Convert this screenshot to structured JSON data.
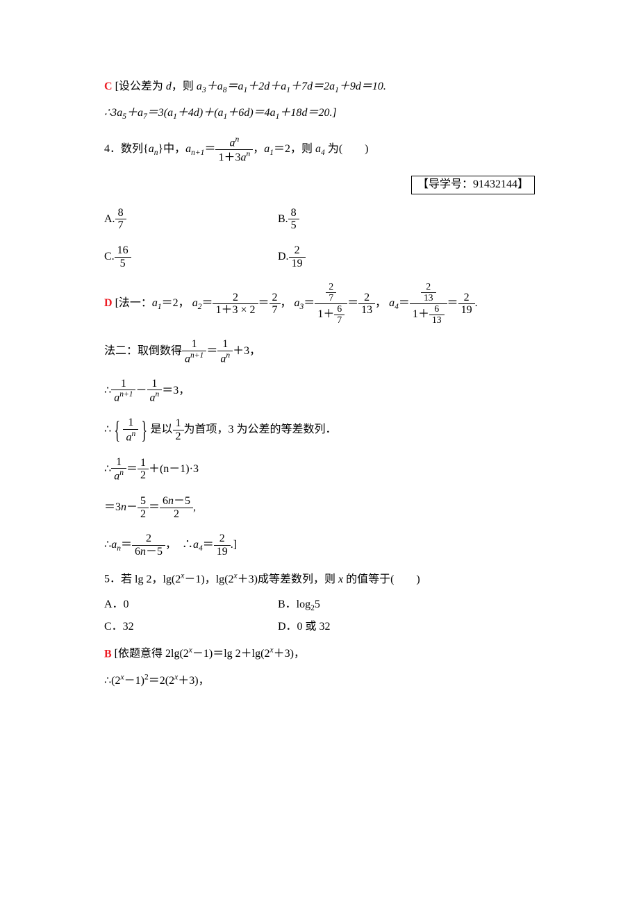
{
  "colors": {
    "answer": "#ed1c24",
    "text": "#000000",
    "background": "#ffffff"
  },
  "typography": {
    "base_font": "SimSun / Times New Roman",
    "base_size_pt": 12
  },
  "q3_answer": {
    "letter": "C",
    "line1_prefix": "[设公差为 ",
    "line1_mid": "，则 ",
    "line1_expr": "a₃＋a₈＝a₁＋2d＋a₁＋7d＝2a₁＋9d＝10.",
    "line2": "∴3a₅＋a₇＝3(a₁＋4d)＋(a₁＋6d)＝4a₁＋18d＝20.]"
  },
  "q4": {
    "num": "4．",
    "prefix": "数列{",
    "mid1": "}中，",
    "frac_num": "aⁿ",
    "frac_den": "1＋3aⁿ",
    "mid2": "，",
    "mid3": "＝2，则 ",
    "suffix": " 为(　　)",
    "ref": "【导学号：91432144】",
    "optA_num": "8",
    "optA_den": "7",
    "optB_num": "8",
    "optB_den": "5",
    "optC_num": "16",
    "optC_den": "5",
    "optD_num": "2",
    "optD_den": "19",
    "answer_letter": "D",
    "m1_prefix": "[法一：",
    "m1_a1": "＝2，",
    "m1_a2_n1": "2",
    "m1_a2_d1": "1＋3 × 2",
    "m1_a2_n2": "2",
    "m1_a2_d2": "7",
    "m1_a3_n1n": "2",
    "m1_a3_n1d": "7",
    "m1_a3_d1": "1＋",
    "m1_a3_d1fn": "6",
    "m1_a3_d1fd": "7",
    "m1_a3_n2": "2",
    "m1_a3_d2": "13",
    "m1_a4_n1n": "2",
    "m1_a4_n1d": "13",
    "m1_a4_d1": "1＋",
    "m1_a4_d1fn": "6",
    "m1_a4_d1fd": "13",
    "m1_a4_n2": "2",
    "m1_a4_d2": "19",
    "m2_prefix": "法二：取倒数得",
    "m2_l1_n1": "1",
    "m2_l1_n2": "1",
    "m2_l1_suffix": "＋3，",
    "m2_l2_n1": "1",
    "m2_l2_n2": "1",
    "m2_l2_suffix": "＝3，",
    "m2_l3_n1": "1",
    "m2_l3_mid": "是以",
    "m2_l3_fn": "1",
    "m2_l3_fd": "2",
    "m2_l3_suffix": "为首项，3 为公差的等差数列．",
    "m2_l4_n1": "1",
    "m2_l4_n2": "1",
    "m2_l4_n2d": "2",
    "m2_l4_suffix": "＋(n－1)·3",
    "m2_l5_prefix": "＝3",
    "m2_l5_n1": "5",
    "m2_l5_d1": "2",
    "m2_l5_n2": "6n－5",
    "m2_l5_d2": "2",
    "m2_l6_n1": "2",
    "m2_l6_d1": "6n－5",
    "m2_l6_n2": "2",
    "m2_l6_d2": "19"
  },
  "q5": {
    "num": "5．",
    "stem": "若 lg 2，lg(2ˣ－1)，lg(2ˣ＋3)成等差数列，则 x 的值等于(　　)",
    "optA": "A．0",
    "optB": "B．log₂5",
    "optC": "C．32",
    "optD": "D．0 或 32",
    "answer_letter": "B",
    "sol_line1": "[依题意得 2lg(2ˣ－1)＝lg 2＋lg(2ˣ＋3)，",
    "sol_line2": "∴(2ˣ－1)²＝2(2ˣ＋3)，"
  }
}
